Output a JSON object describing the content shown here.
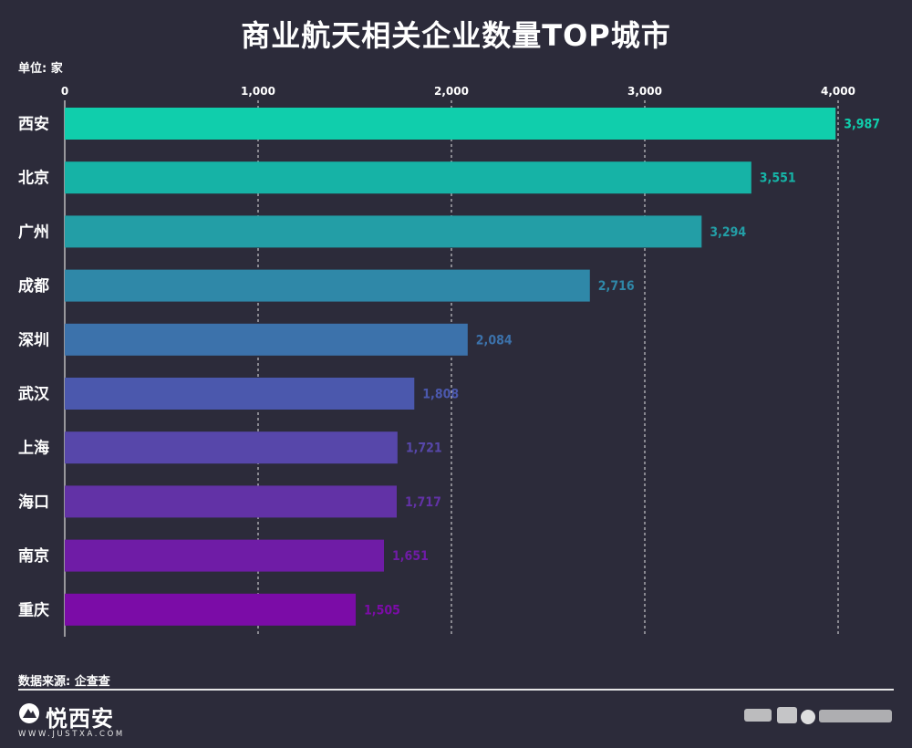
{
  "title": "商业航天相关企业数量TOP城市",
  "unit_label": "单位: 家",
  "source_label": "数据来源: 企查查",
  "logo": {
    "name": "悦西安",
    "url": "WWW.JUSTXA.COM"
  },
  "chart_data": {
    "type": "bar",
    "orientation": "horizontal",
    "categories": [
      "西安",
      "北京",
      "广州",
      "成都",
      "深圳",
      "武汉",
      "上海",
      "海口",
      "南京",
      "重庆"
    ],
    "values": [
      3987,
      3551,
      3294,
      2716,
      2084,
      1808,
      1721,
      1717,
      1651,
      1505
    ],
    "value_labels": [
      "3,987",
      "3,551",
      "3,294",
      "2,716",
      "2,084",
      "1,808",
      "1,721",
      "1,717",
      "1,651",
      "1,505"
    ],
    "colors": [
      "#10ceac",
      "#16b3a6",
      "#239ea6",
      "#2f88a8",
      "#3c72ab",
      "#4b58ad",
      "#5747aa",
      "#6232a6",
      "#6f1ca6",
      "#7b0ca7"
    ],
    "x_ticks": [
      0,
      1000,
      2000,
      3000,
      4000
    ],
    "x_tick_labels": [
      "0",
      "1,000",
      "2,000",
      "3,000",
      "4,000"
    ],
    "xlim": [
      0,
      4000
    ],
    "axis_position": "top",
    "grid": "vertical dashed",
    "legend": "none"
  }
}
